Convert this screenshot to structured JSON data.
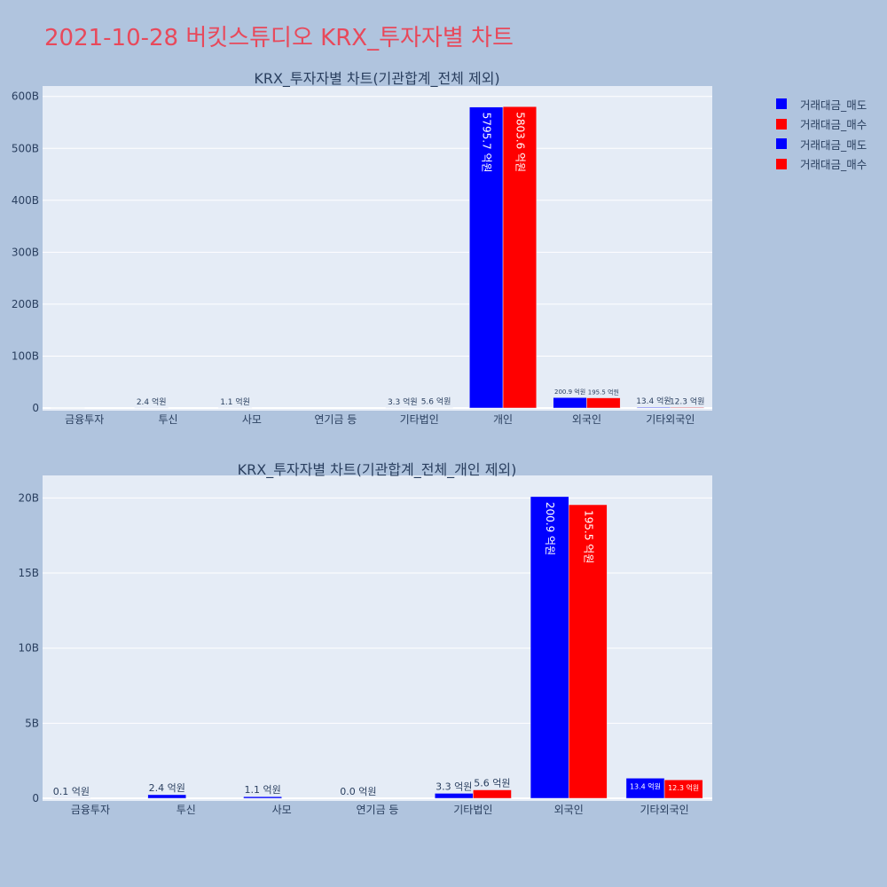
{
  "page": {
    "title": "2021-10-28 버킷스튜디오 KRX_투자자별 차트",
    "title_color": "#e8495b",
    "background": "#b0c4de"
  },
  "legend": [
    {
      "name": "거래대금_매도",
      "color": "#0000ff"
    },
    {
      "name": "거래대금_매수",
      "color": "#ff0000"
    },
    {
      "name": "거래대금_매도",
      "color": "#0000ff"
    },
    {
      "name": "거래대금_매수",
      "color": "#ff0000"
    }
  ],
  "chart_data": [
    {
      "type": "bar",
      "title": "KRX_투자자별 차트(기관합계_전체 제외)",
      "categories": [
        "금융투자",
        "투신",
        "사모",
        "연기금 등",
        "기타법인",
        "개인",
        "외국인",
        "기타외국인"
      ],
      "ylim": [
        0,
        620
      ],
      "yticks": [
        0,
        100,
        200,
        300,
        400,
        500,
        600
      ],
      "ytick_labels": [
        "0",
        "100B",
        "200B",
        "300B",
        "400B",
        "500B",
        "600B"
      ],
      "grid": true,
      "series": [
        {
          "name": "거래대금_매도",
          "color": "#0000ff",
          "values": [
            0.01,
            0.24,
            0.11,
            0.0,
            0.33,
            579.57,
            20.09,
            1.34
          ],
          "labels": [
            "",
            "2.4 억원",
            "1.1 억원",
            "",
            "3.3 억원",
            "5795.7 억원",
            "200.9 억원",
            "13.4 억원"
          ]
        },
        {
          "name": "거래대금_매수",
          "color": "#ff0000",
          "values": [
            0.0,
            0.0,
            0.0,
            0.0,
            0.56,
            580.36,
            19.55,
            1.23
          ],
          "labels": [
            "",
            "",
            "",
            "",
            "5.6 억원",
            "5803.6 억원",
            "195.5 억원",
            "12.3 억원"
          ]
        }
      ]
    },
    {
      "type": "bar",
      "title": "KRX_투자자별 차트(기관합계_전체_개인 제외)",
      "categories": [
        "금융투자",
        "투신",
        "사모",
        "연기금 등",
        "기타법인",
        "외국인",
        "기타외국인"
      ],
      "ylim": [
        0,
        21.5
      ],
      "yticks": [
        0,
        5,
        10,
        15,
        20
      ],
      "ytick_labels": [
        "0",
        "5B",
        "10B",
        "15B",
        "20B"
      ],
      "grid": true,
      "series": [
        {
          "name": "거래대금_매도",
          "color": "#0000ff",
          "values": [
            0.01,
            0.24,
            0.11,
            0.0,
            0.33,
            20.09,
            1.34
          ],
          "labels": [
            "0.1 억원",
            "2.4 억원",
            "1.1 억원",
            "0.0 억원",
            "3.3 억원",
            "200.9 억원",
            "13.4 억원"
          ]
        },
        {
          "name": "거래대금_매수",
          "color": "#ff0000",
          "values": [
            0.0,
            0.0,
            0.0,
            0.0,
            0.56,
            19.55,
            1.23
          ],
          "labels": [
            "",
            "",
            "",
            "",
            "5.6 억원",
            "195.5 억원",
            "12.3 억원"
          ]
        }
      ]
    }
  ]
}
